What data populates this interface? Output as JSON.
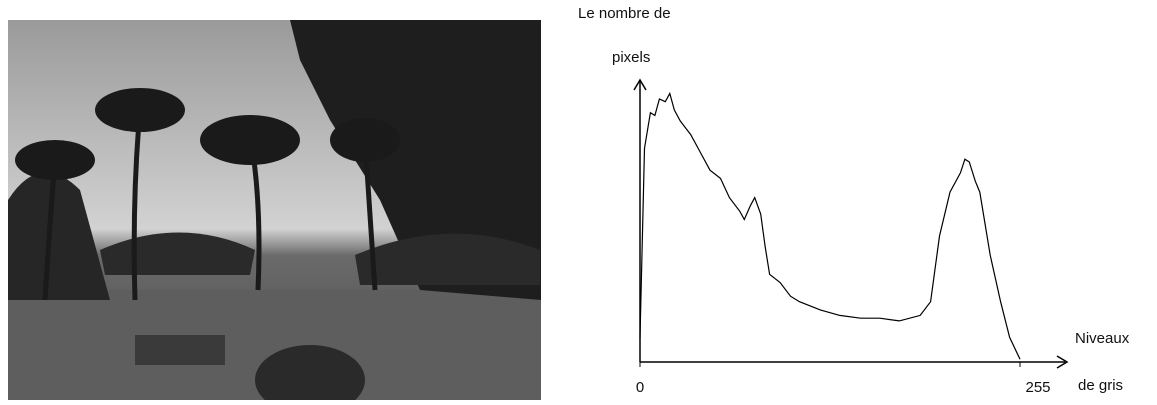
{
  "chart_data": {
    "type": "line",
    "ylabel": [
      "Le nombre de",
      "pixels"
    ],
    "xlabel": [
      "Niveaux",
      "de gris"
    ],
    "x": [
      0,
      3,
      7,
      10,
      13,
      17,
      20,
      23,
      27,
      34,
      40,
      47,
      54,
      60,
      67,
      70,
      74,
      77,
      81,
      84,
      87,
      94,
      101,
      107,
      121,
      134,
      148,
      161,
      174,
      188,
      195,
      201,
      208,
      215,
      218,
      221,
      225,
      228,
      235,
      242,
      248,
      255
    ],
    "values": [
      9,
      78,
      91,
      90,
      96,
      95,
      98,
      92,
      88,
      83,
      77,
      70,
      67,
      60,
      55,
      52,
      57,
      60,
      54,
      42,
      32,
      29,
      24,
      22,
      19,
      17,
      16,
      16,
      15,
      17,
      22,
      46,
      62,
      69,
      74,
      73,
      66,
      62,
      39,
      22,
      9,
      1
    ],
    "color": "#000000",
    "xlim": [
      0,
      255
    ],
    "xticks": [
      0,
      255
    ],
    "ylim": [
      0,
      100
    ]
  }
}
